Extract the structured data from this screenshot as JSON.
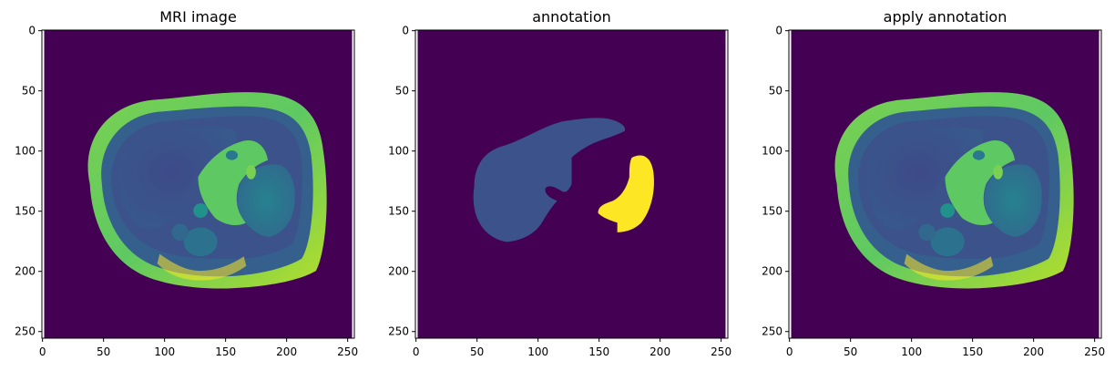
{
  "figure": {
    "panels": [
      {
        "title": "MRI image",
        "kind": "mri",
        "x_ticks": [
          "0",
          "50",
          "100",
          "150",
          "200",
          "250"
        ],
        "y_ticks": [
          "0",
          "50",
          "100",
          "150",
          "200",
          "250"
        ]
      },
      {
        "title": "annotation",
        "kind": "mask",
        "x_ticks": [
          "0",
          "50",
          "100",
          "150",
          "200",
          "250"
        ],
        "y_ticks": [
          "0",
          "50",
          "100",
          "150",
          "200",
          "250"
        ]
      },
      {
        "title": "apply annotation",
        "kind": "mri",
        "x_ticks": [
          "0",
          "50",
          "100",
          "150",
          "200",
          "250"
        ],
        "y_ticks": [
          "0",
          "50",
          "100",
          "150",
          "200",
          "250"
        ]
      }
    ],
    "colors": {
      "background": "#440154",
      "tissue_dark": "#3b528b",
      "tissue_mid": "#21918c",
      "tissue_bright": "#5ec962",
      "tissue_peak": "#b5de2b",
      "mask_liver": "#3b528b",
      "mask_spleen": "#fde725",
      "axis": "#000000"
    }
  }
}
